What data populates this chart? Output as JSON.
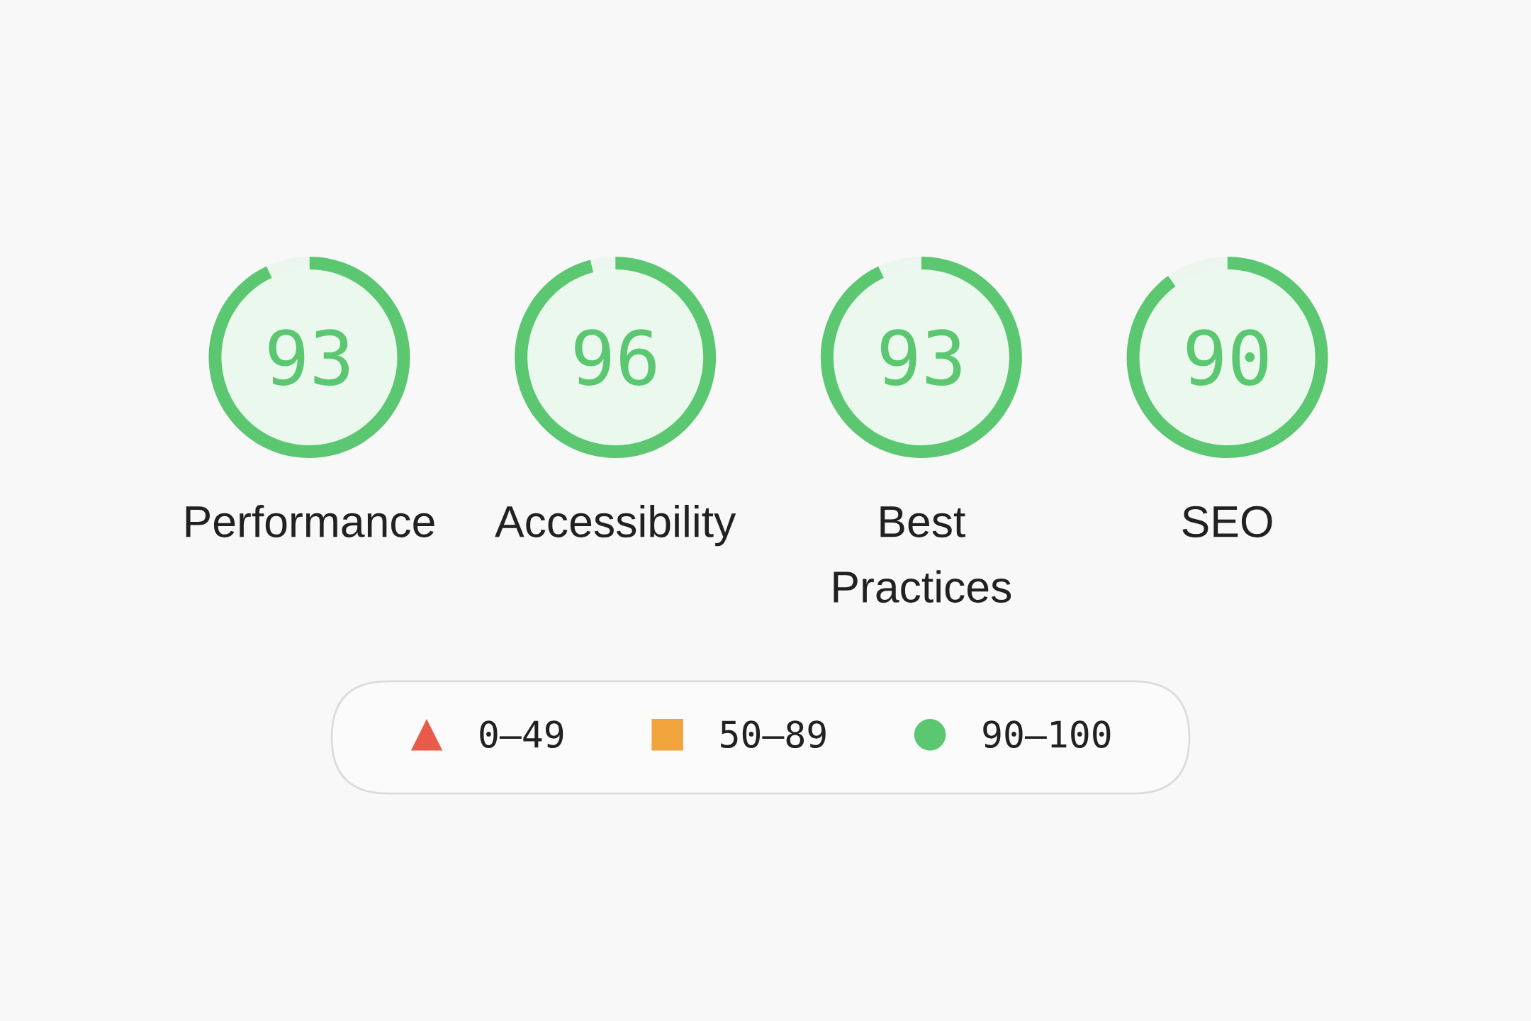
{
  "chart_data": [
    {
      "type": "donut",
      "title": "Performance",
      "categories": [
        null,
        null
      ],
      "values": [
        93,
        7
      ],
      "colors": [
        "#5bc771",
        "#ebf7ee"
      ],
      "value_labels": [
        "93",
        null
      ]
    },
    {
      "type": "donut",
      "title": "Accessibility",
      "categories": [
        null,
        null
      ],
      "values": [
        96,
        4
      ],
      "colors": [
        "#5bc771",
        "#ebf7ee"
      ],
      "value_labels": [
        "96",
        null
      ]
    },
    {
      "type": "donut",
      "title": "Best Practices",
      "categories": [
        null,
        null
      ],
      "values": [
        93,
        7
      ],
      "colors": [
        "#5bc771",
        "#ebf7ee"
      ],
      "value_labels": [
        "93",
        null
      ]
    },
    {
      "type": "donut",
      "title": "SEO",
      "categories": [
        null,
        null
      ],
      "values": [
        90,
        10
      ],
      "colors": [
        "#5bc771",
        "#ebf7ee"
      ],
      "value_labels": [
        "90",
        null
      ]
    },
    {
      "type": "other",
      "categories": [
        "0–49",
        "50–89",
        "90–100"
      ],
      "colors": [
        "#e85a4a",
        "#f0a43b",
        "#5bc771"
      ]
    }
  ]
}
